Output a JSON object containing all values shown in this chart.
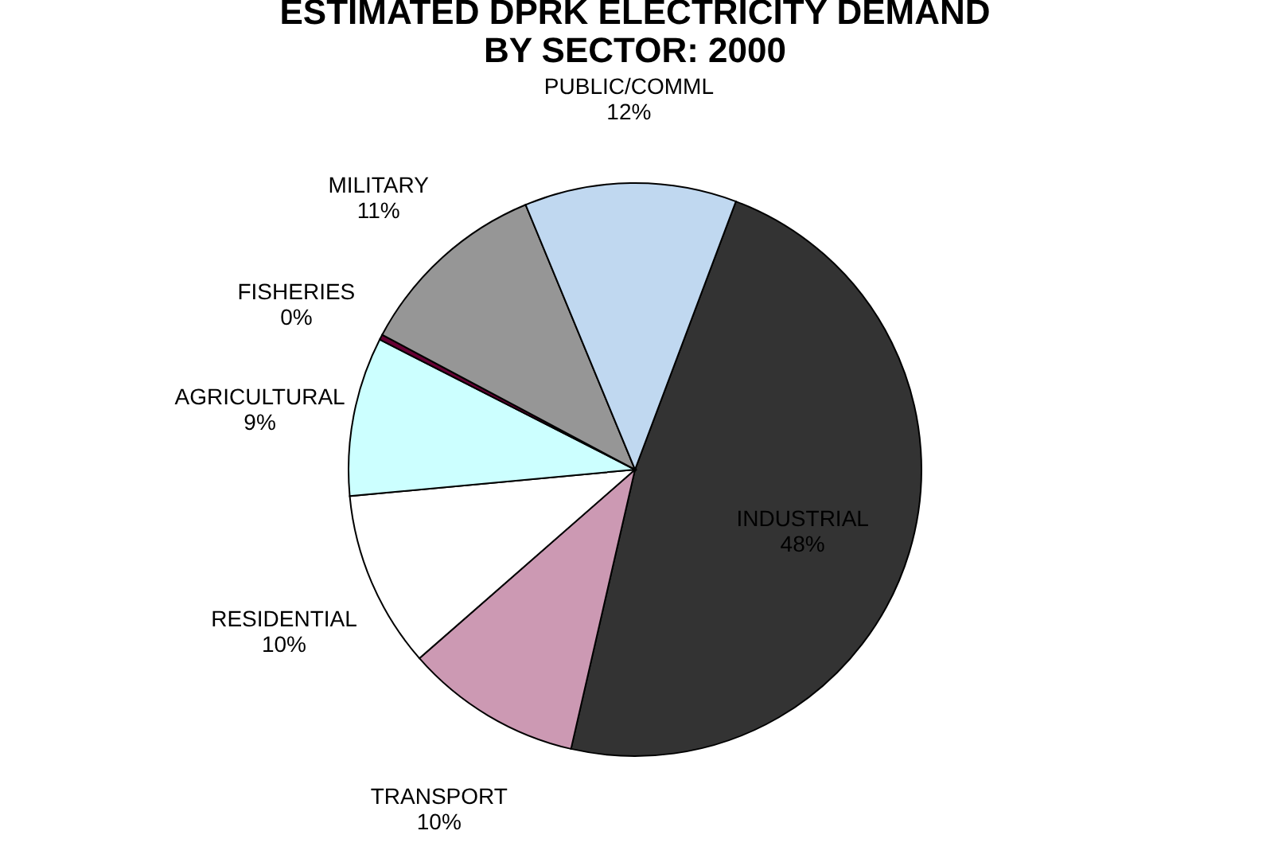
{
  "chart_data": {
    "type": "pie",
    "title": [
      "ESTIMATED DPRK ELECTRICITY DEMAND",
      "BY SECTOR: 2000"
    ],
    "categories": [
      "INDUSTRIAL",
      "TRANSPORT",
      "RESIDENTIAL",
      "AGRICULTURAL",
      "FISHERIES",
      "MILITARY",
      "PUBLIC/COMML"
    ],
    "values": [
      48,
      10,
      10,
      9,
      0.3,
      11,
      12
    ],
    "value_labels": [
      "48%",
      "10%",
      "10%",
      "9%",
      "0%",
      "11%",
      "12%"
    ],
    "colors": [
      "#333333",
      "#cc99b3",
      "#ffffff",
      "#ccffff",
      "#660033",
      "#969696",
      "#c0d8f0"
    ]
  }
}
